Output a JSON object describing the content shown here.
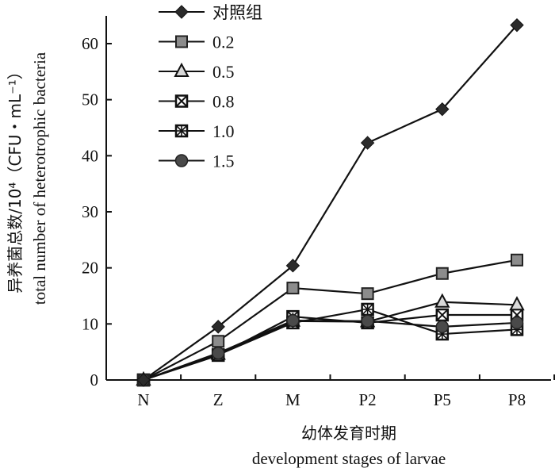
{
  "chart_data": {
    "type": "line",
    "title": "",
    "categories": [
      "N",
      "Z",
      "M",
      "P2",
      "P5",
      "P8"
    ],
    "xlabel_cn": "幼体发育时期",
    "xlabel": "development stages of larvae",
    "ylabel_cn": "异养菌总数/10⁴（CFU・mL⁻¹）",
    "ylabel": "total number of heterotrophic bacteria",
    "ylim": [
      0,
      65
    ],
    "yticks": [
      0,
      10,
      20,
      30,
      40,
      50,
      60
    ],
    "grid": false,
    "legend_position": "top-left",
    "series": [
      {
        "name": "对照组",
        "marker": "diamond",
        "fill": "#2b2b2b",
        "values": [
          0,
          9.5,
          20.4,
          42.3,
          48.3,
          63.3
        ]
      },
      {
        "name": "0.2",
        "marker": "square",
        "fill": "#8c8c8c",
        "values": [
          0,
          6.9,
          16.4,
          15.4,
          19.0,
          21.4
        ]
      },
      {
        "name": "0.5",
        "marker": "triangle",
        "fill": "#d9d9d9",
        "values": [
          0,
          4.6,
          10.5,
          10.4,
          13.9,
          13.4
        ]
      },
      {
        "name": "0.8",
        "marker": "square-cross",
        "fill": "#ffffff",
        "values": [
          0,
          4.4,
          11.3,
          10.2,
          11.6,
          11.6
        ]
      },
      {
        "name": "1.0",
        "marker": "square-star",
        "fill": "#ffffff",
        "values": [
          0,
          4.5,
          10.2,
          12.6,
          8.2,
          9.0
        ]
      },
      {
        "name": "1.5",
        "marker": "circle",
        "fill": "#4a4a4a",
        "values": [
          0,
          4.8,
          10.6,
          10.5,
          9.5,
          10.2
        ]
      }
    ]
  }
}
